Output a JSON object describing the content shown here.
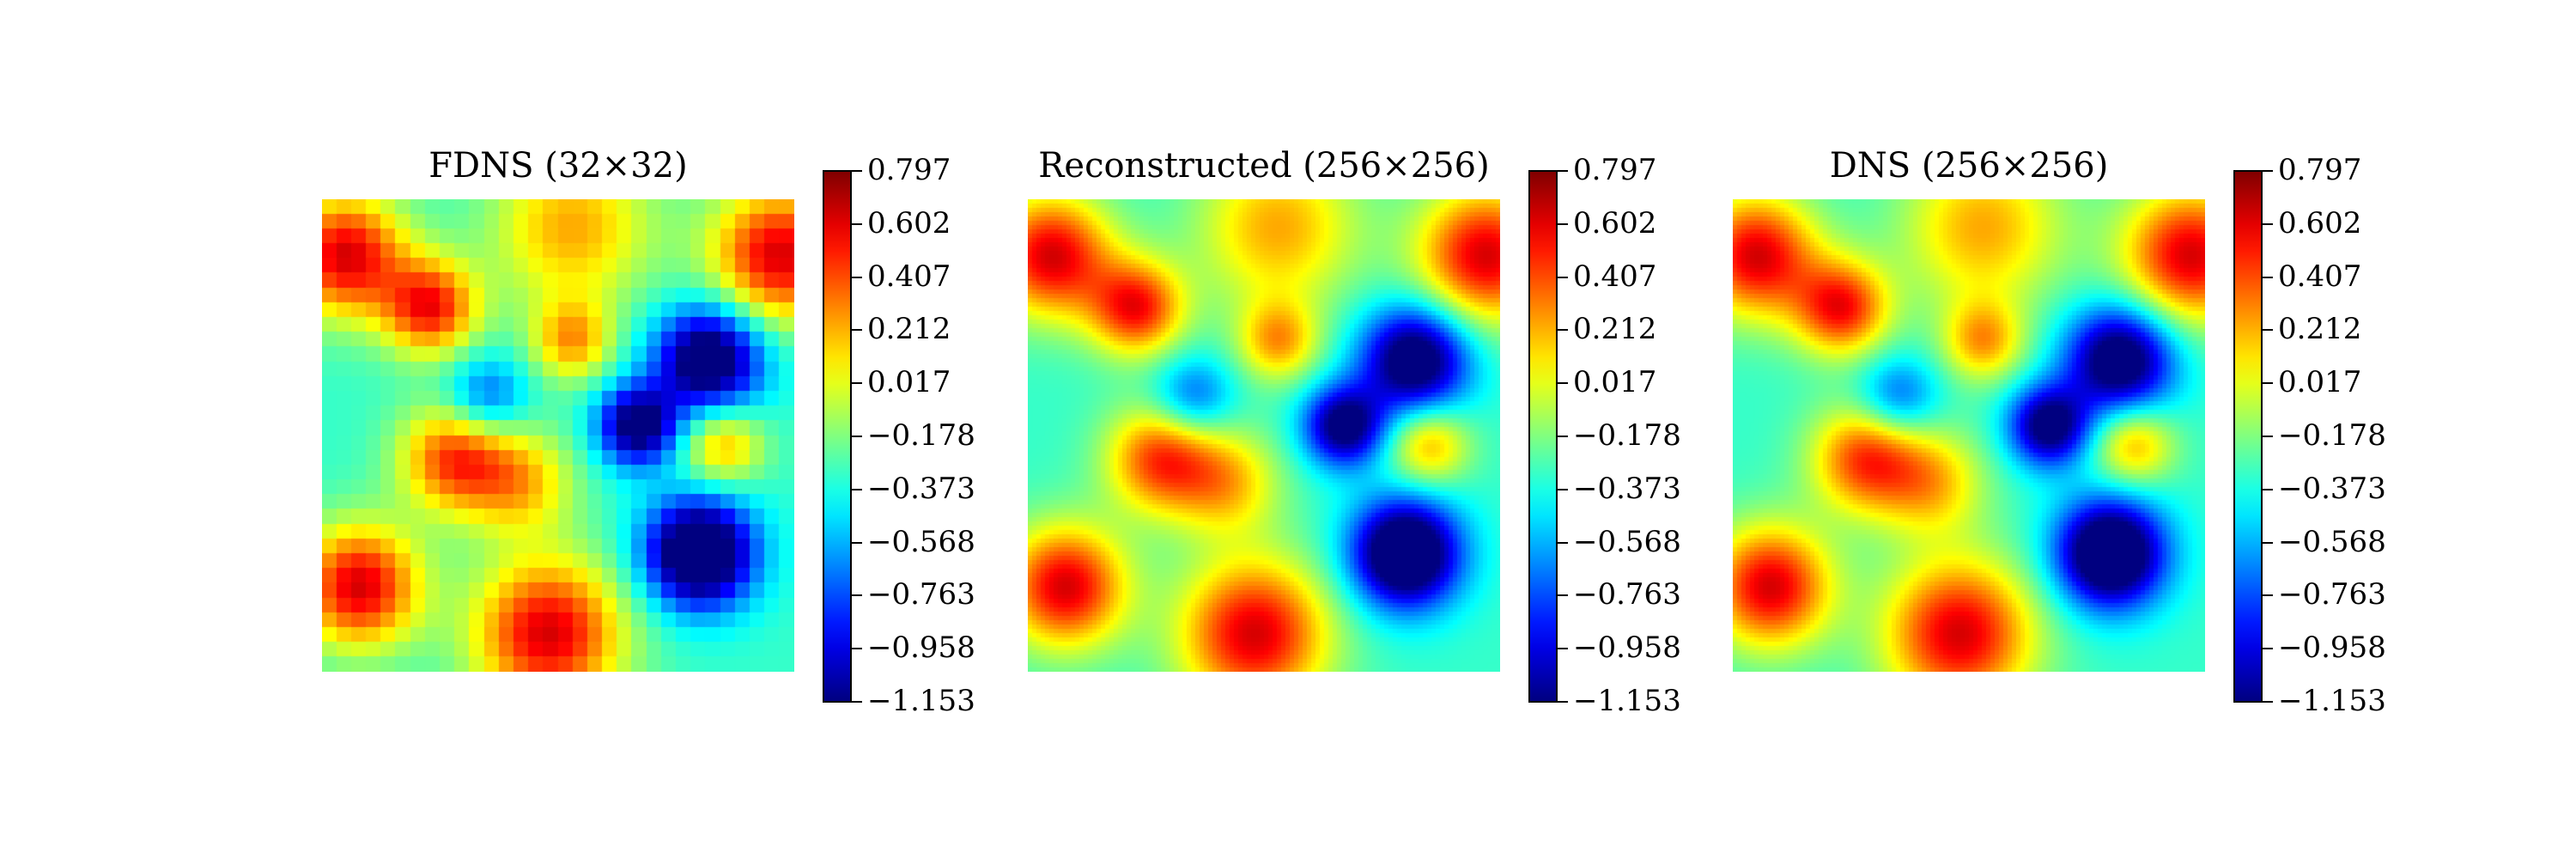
{
  "chart_data": [
    {
      "type": "heatmap",
      "title": "FDNS (32×32)",
      "grid": "32x32",
      "interpolation": "nearest",
      "colormap": "jet",
      "colorbar": {
        "min": -1.153,
        "max": 0.797,
        "ticks": [
          "0.797",
          "0.602",
          "0.407",
          "0.212",
          "0.017",
          "−0.178",
          "−0.373",
          "−0.568",
          "−0.763",
          "−0.958",
          "−1.153"
        ]
      }
    },
    {
      "type": "heatmap",
      "title": "Reconstructed (256×256)",
      "grid": "256x256",
      "interpolation": "smooth",
      "colormap": "jet",
      "colorbar": {
        "min": -1.153,
        "max": 0.797,
        "ticks": [
          "0.797",
          "0.602",
          "0.407",
          "0.212",
          "0.017",
          "−0.178",
          "−0.373",
          "−0.568",
          "−0.763",
          "−0.958",
          "−1.153"
        ]
      }
    },
    {
      "type": "heatmap",
      "title": "DNS (256×256)",
      "grid": "256x256",
      "interpolation": "smooth",
      "colormap": "jet",
      "colorbar": {
        "min": -1.153,
        "max": 0.797,
        "ticks": [
          "0.797",
          "0.602",
          "0.407",
          "0.212",
          "0.017",
          "−0.178",
          "−0.373",
          "−0.568",
          "−0.763",
          "−0.958",
          "−1.153"
        ]
      }
    }
  ]
}
